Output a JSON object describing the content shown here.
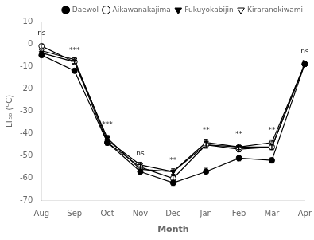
{
  "chart_data": {
    "type": "line",
    "xlabel": "Month",
    "ylabel": "LT₅₀ (ᴼC)",
    "categories": [
      "Aug",
      "Sep",
      "Oct",
      "Nov",
      "Dec",
      "Jan",
      "Feb",
      "Mar",
      "Apr"
    ],
    "series": [
      {
        "name": "Daewol",
        "color": "black",
        "marker": "filled_circle",
        "line_style": "solid",
        "values": [
          -5,
          -12,
          -44,
          -57,
          -62,
          -57,
          -51,
          -52,
          -9
        ],
        "errors": [
          0.8,
          0.8,
          1.2,
          1.2,
          1.2,
          1.5,
          1.2,
          1.2,
          1.5
        ]
      },
      {
        "name": "Aikawanakajima",
        "color": "black",
        "marker": "open_circle",
        "line_style": "solid",
        "values": [
          -1,
          -8,
          -44,
          -55,
          -60,
          -45,
          -47,
          -46,
          -9
        ],
        "errors": [
          0.8,
          0.8,
          1.2,
          1.2,
          1.2,
          1.5,
          1.2,
          1.2,
          1.5
        ]
      },
      {
        "name": "Fukuyokabijin",
        "color": "black",
        "marker": "filled_triangle_down",
        "line_style": "solid",
        "values": [
          -4,
          -8,
          -42,
          -56,
          -57,
          -45,
          -46,
          -46,
          -9
        ],
        "errors": [
          0.8,
          0.8,
          1.2,
          1.2,
          1.2,
          1.5,
          1.2,
          1.2,
          1.5
        ]
      },
      {
        "name": "Kiraranokiwami",
        "color": "black",
        "marker": "open_triangle_down",
        "line_style": "solid",
        "values": [
          -3,
          -7,
          -43,
          -54,
          -57,
          -44,
          -46,
          -44,
          -9
        ],
        "errors": [
          0.8,
          0.8,
          1.2,
          1.2,
          1.2,
          1.5,
          1.2,
          1.2,
          1.5
        ]
      }
    ],
    "annotations": [
      {
        "x": "Aug",
        "y": 3.0,
        "text": "ns"
      },
      {
        "x": "Sep",
        "y": -5.0,
        "text": "***"
      },
      {
        "x": "Oct",
        "y": -38.0,
        "text": "***"
      },
      {
        "x": "Nov",
        "y": -51.0,
        "text": "ns"
      },
      {
        "x": "Dec",
        "y": -54.0,
        "text": "**"
      },
      {
        "x": "Jan",
        "y": -40.5,
        "text": "**"
      },
      {
        "x": "Feb",
        "y": -42.5,
        "text": "**"
      },
      {
        "x": "Mar",
        "y": -40.5,
        "text": "**"
      },
      {
        "x": "Apr",
        "y": -5.5,
        "text": "ns"
      }
    ],
    "ylim": [
      -70,
      10
    ],
    "yticks": [
      10,
      0,
      -10,
      -20,
      -30,
      -40,
      -50,
      -60,
      -70
    ],
    "grid": false,
    "legend": "upper right"
  }
}
